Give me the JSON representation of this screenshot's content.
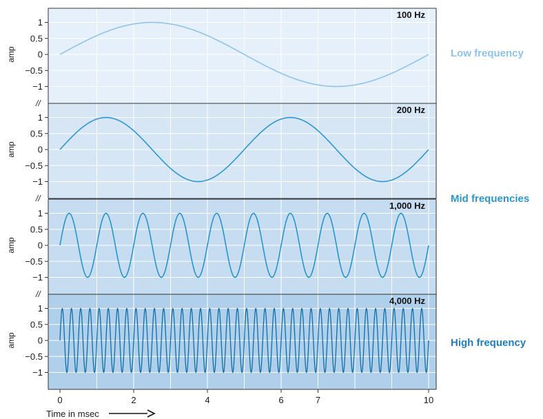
{
  "chart_data": {
    "type": "line",
    "x_range": [
      0,
      10
    ],
    "x_ticks": [
      0,
      2,
      4,
      6,
      7,
      10
    ],
    "xlabel": "Time in msec",
    "y_ticks": [
      1,
      0.5,
      0,
      -0.5,
      -1
    ],
    "y_tick_labels": [
      "1",
      "0.5",
      "0",
      "−0.5",
      "−1"
    ],
    "ylabel": "amp",
    "ylim": [
      -1.25,
      1.25
    ],
    "break_mark": "//",
    "panels": [
      {
        "label": "100 Hz",
        "cycles": 1,
        "bg": "#e6f0fa",
        "color": "#8cc4ec",
        "width": 1.6
      },
      {
        "label": "200 Hz",
        "cycles": 2,
        "bg": "#d6e6f5",
        "color": "#2b97d2",
        "width": 1.6
      },
      {
        "label": "1,000 Hz",
        "cycles": 10,
        "bg": "#c6dcf0",
        "color": "#2090cc",
        "width": 1.5
      },
      {
        "label": "4,000 Hz",
        "cycles": 40,
        "bg": "#b0cfea",
        "color": "#0f6ea8",
        "width": 1.3
      }
    ],
    "side_labels": [
      {
        "text": "Low frequency",
        "color": "#8cc4ec"
      },
      {
        "text": "Mid frequencies",
        "color": "#2b97d2"
      },
      {
        "text": "High frequency",
        "color": "#1f7fbd"
      }
    ]
  }
}
